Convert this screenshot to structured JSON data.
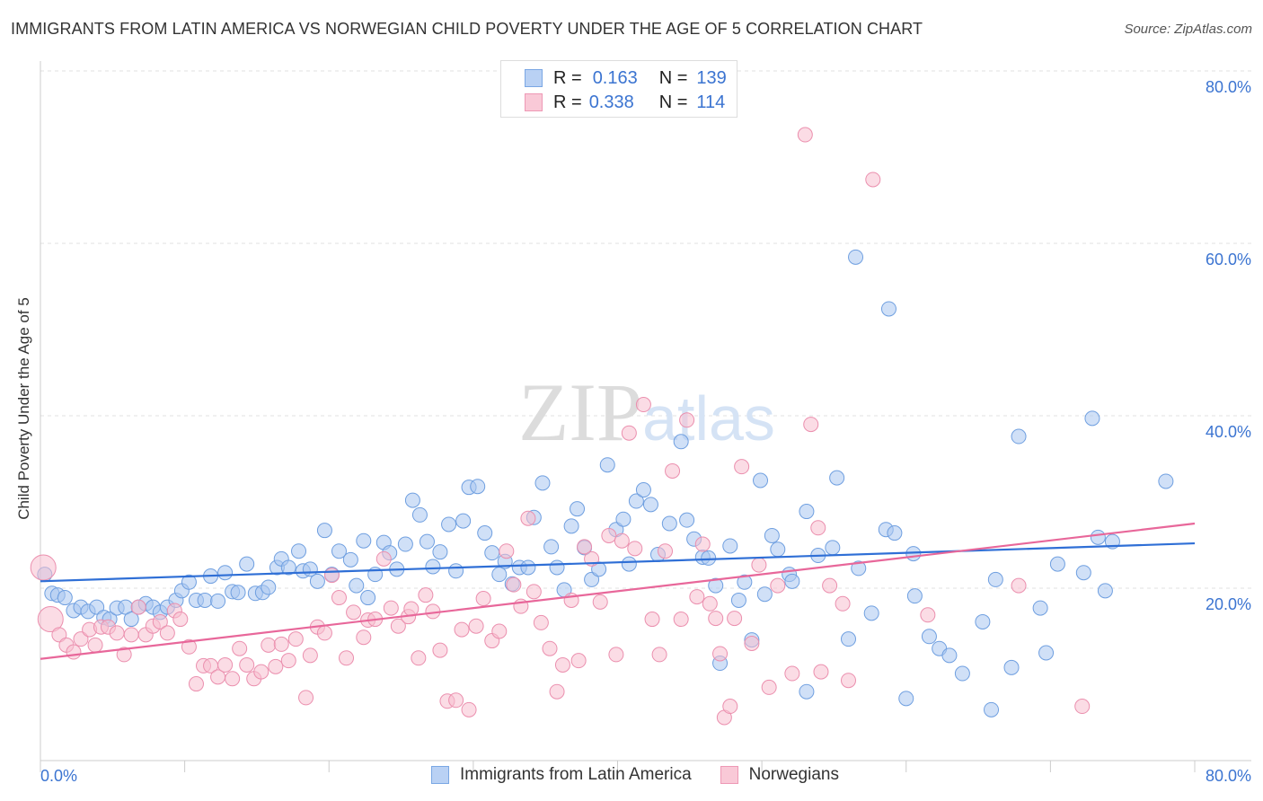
{
  "chart_data": {
    "type": "scatter",
    "title": "IMMIGRANTS FROM LATIN AMERICA VS NORWEGIAN CHILD POVERTY UNDER THE AGE OF 5 CORRELATION CHART",
    "source": "Source: ZipAtlas.com",
    "xlabel": "",
    "ylabel": "Child Poverty Under the Age of 5",
    "xlim": [
      0,
      80
    ],
    "ylim": [
      0,
      80
    ],
    "x_tick_labels": [
      "0.0%",
      "80.0%"
    ],
    "y_ticks": [
      20,
      40,
      60,
      80
    ],
    "y_tick_labels": [
      "20.0%",
      "40.0%",
      "60.0%",
      "80.0%"
    ],
    "grid": true,
    "watermark": "ZIPatlas",
    "legend": [
      {
        "r_label": "R =",
        "r": "0.163",
        "n_label": "N =",
        "n": "139"
      },
      {
        "r_label": "R =",
        "r": "0.338",
        "n_label": "N =",
        "n": "114"
      }
    ],
    "series": [
      {
        "name": "Immigrants from Latin America",
        "color": "#a9c6f0",
        "stroke": "#6f9fe0",
        "line_color": "#2f6fd6",
        "trend": [
          [
            0,
            20.8
          ],
          [
            80,
            25.2
          ]
        ],
        "points": [
          [
            0.3,
            21.6
          ],
          [
            0.8,
            19.4
          ],
          [
            1.2,
            19.2
          ],
          [
            1.7,
            18.9
          ],
          [
            2.3,
            17.4
          ],
          [
            2.8,
            17.8
          ],
          [
            3.3,
            17.3
          ],
          [
            3.9,
            17.8
          ],
          [
            4.4,
            16.6
          ],
          [
            4.8,
            16.4
          ],
          [
            5.3,
            17.7
          ],
          [
            5.9,
            17.8
          ],
          [
            6.3,
            16.4
          ],
          [
            6.8,
            17.8
          ],
          [
            7.3,
            18.2
          ],
          [
            7.8,
            17.8
          ],
          [
            8.3,
            17.2
          ],
          [
            8.8,
            17.8
          ],
          [
            9.4,
            18.6
          ],
          [
            9.8,
            19.7
          ],
          [
            10.3,
            20.7
          ],
          [
            10.8,
            18.6
          ],
          [
            11.4,
            18.6
          ],
          [
            11.8,
            21.4
          ],
          [
            12.3,
            18.5
          ],
          [
            12.8,
            21.8
          ],
          [
            13.3,
            19.6
          ],
          [
            13.7,
            19.5
          ],
          [
            14.3,
            22.8
          ],
          [
            14.9,
            19.4
          ],
          [
            15.4,
            19.5
          ],
          [
            15.8,
            20.1
          ],
          [
            16.4,
            22.4
          ],
          [
            16.7,
            23.4
          ],
          [
            17.2,
            22.4
          ],
          [
            17.9,
            24.3
          ],
          [
            18.2,
            22.0
          ],
          [
            18.7,
            22.2
          ],
          [
            19.2,
            20.8
          ],
          [
            19.7,
            26.7
          ],
          [
            20.2,
            21.6
          ],
          [
            20.7,
            24.3
          ],
          [
            21.5,
            23.3
          ],
          [
            21.9,
            20.3
          ],
          [
            22.4,
            25.5
          ],
          [
            22.7,
            18.9
          ],
          [
            23.2,
            21.6
          ],
          [
            23.8,
            25.3
          ],
          [
            24.2,
            24.1
          ],
          [
            24.7,
            22.2
          ],
          [
            25.3,
            25.1
          ],
          [
            25.8,
            30.2
          ],
          [
            26.3,
            28.5
          ],
          [
            26.8,
            25.4
          ],
          [
            27.2,
            22.5
          ],
          [
            27.7,
            24.2
          ],
          [
            28.3,
            27.4
          ],
          [
            28.8,
            22.0
          ],
          [
            29.3,
            27.8
          ],
          [
            29.7,
            31.7
          ],
          [
            30.3,
            31.8
          ],
          [
            30.8,
            26.4
          ],
          [
            31.3,
            24.1
          ],
          [
            31.8,
            21.6
          ],
          [
            32.2,
            23.1
          ],
          [
            32.7,
            20.5
          ],
          [
            33.2,
            22.4
          ],
          [
            33.8,
            22.4
          ],
          [
            34.2,
            28.2
          ],
          [
            34.8,
            32.2
          ],
          [
            35.4,
            24.8
          ],
          [
            35.8,
            22.4
          ],
          [
            36.3,
            19.8
          ],
          [
            36.8,
            27.2
          ],
          [
            37.2,
            29.2
          ],
          [
            37.7,
            24.7
          ],
          [
            38.2,
            21.0
          ],
          [
            38.7,
            22.2
          ],
          [
            39.3,
            34.3
          ],
          [
            39.9,
            26.8
          ],
          [
            40.4,
            28.0
          ],
          [
            40.8,
            22.8
          ],
          [
            41.3,
            30.1
          ],
          [
            41.8,
            31.4
          ],
          [
            42.3,
            29.7
          ],
          [
            42.8,
            23.9
          ],
          [
            43.6,
            27.5
          ],
          [
            44.4,
            37.0
          ],
          [
            44.8,
            27.9
          ],
          [
            45.3,
            25.7
          ],
          [
            45.9,
            23.6
          ],
          [
            46.3,
            23.5
          ],
          [
            46.8,
            20.3
          ],
          [
            47.1,
            11.3
          ],
          [
            47.8,
            24.9
          ],
          [
            48.4,
            18.6
          ],
          [
            48.8,
            20.7
          ],
          [
            49.3,
            14.0
          ],
          [
            49.9,
            32.5
          ],
          [
            50.2,
            19.3
          ],
          [
            50.7,
            26.1
          ],
          [
            51.1,
            24.5
          ],
          [
            51.9,
            21.6
          ],
          [
            52.1,
            20.8
          ],
          [
            53.1,
            28.9
          ],
          [
            53.1,
            8.0
          ],
          [
            53.9,
            23.8
          ],
          [
            54.9,
            24.7
          ],
          [
            55.2,
            32.8
          ],
          [
            56.0,
            14.1
          ],
          [
            56.5,
            58.4
          ],
          [
            56.7,
            22.3
          ],
          [
            57.6,
            17.1
          ],
          [
            58.6,
            26.8
          ],
          [
            58.8,
            52.4
          ],
          [
            59.2,
            26.4
          ],
          [
            60.0,
            7.2
          ],
          [
            60.5,
            24.0
          ],
          [
            60.6,
            19.1
          ],
          [
            61.6,
            14.4
          ],
          [
            62.3,
            13.0
          ],
          [
            63.0,
            12.2
          ],
          [
            63.9,
            10.1
          ],
          [
            65.3,
            16.1
          ],
          [
            65.9,
            5.9
          ],
          [
            66.2,
            21.0
          ],
          [
            67.3,
            10.8
          ],
          [
            67.8,
            37.6
          ],
          [
            69.3,
            17.7
          ],
          [
            69.7,
            12.5
          ],
          [
            70.5,
            22.8
          ],
          [
            72.3,
            21.8
          ],
          [
            72.9,
            39.7
          ],
          [
            73.3,
            25.9
          ],
          [
            73.8,
            19.7
          ],
          [
            74.3,
            25.4
          ],
          [
            78.0,
            32.4
          ]
        ]
      },
      {
        "name": "Norwegians",
        "color": "#f7bfd0",
        "stroke": "#eb8fae",
        "line_color": "#e8679a",
        "trend": [
          [
            0,
            11.8
          ],
          [
            80,
            27.5
          ]
        ],
        "points": [
          [
            0.2,
            22.4
          ],
          [
            0.7,
            16.4
          ],
          [
            1.3,
            14.6
          ],
          [
            1.8,
            13.4
          ],
          [
            2.3,
            12.6
          ],
          [
            2.8,
            14.1
          ],
          [
            3.4,
            15.2
          ],
          [
            3.8,
            13.4
          ],
          [
            4.2,
            15.5
          ],
          [
            4.7,
            15.5
          ],
          [
            5.3,
            14.8
          ],
          [
            5.8,
            12.3
          ],
          [
            6.3,
            14.6
          ],
          [
            6.8,
            17.8
          ],
          [
            7.3,
            14.6
          ],
          [
            7.8,
            15.6
          ],
          [
            8.3,
            16.1
          ],
          [
            8.8,
            14.8
          ],
          [
            9.3,
            17.4
          ],
          [
            9.7,
            16.4
          ],
          [
            10.3,
            13.2
          ],
          [
            10.8,
            8.9
          ],
          [
            11.3,
            11.0
          ],
          [
            11.8,
            11.0
          ],
          [
            12.3,
            9.7
          ],
          [
            12.8,
            11.1
          ],
          [
            13.3,
            9.5
          ],
          [
            13.8,
            13.0
          ],
          [
            14.3,
            11.1
          ],
          [
            14.8,
            9.5
          ],
          [
            15.3,
            10.3
          ],
          [
            15.8,
            13.4
          ],
          [
            16.3,
            10.9
          ],
          [
            16.7,
            13.5
          ],
          [
            17.2,
            11.6
          ],
          [
            17.7,
            14.1
          ],
          [
            18.4,
            7.3
          ],
          [
            18.7,
            12.2
          ],
          [
            19.2,
            15.5
          ],
          [
            19.7,
            14.8
          ],
          [
            20.2,
            21.5
          ],
          [
            20.7,
            18.9
          ],
          [
            21.2,
            11.9
          ],
          [
            21.7,
            17.2
          ],
          [
            22.4,
            14.3
          ],
          [
            22.7,
            16.3
          ],
          [
            23.2,
            16.4
          ],
          [
            23.8,
            23.4
          ],
          [
            24.3,
            17.7
          ],
          [
            24.8,
            15.6
          ],
          [
            25.5,
            16.7
          ],
          [
            25.7,
            17.6
          ],
          [
            26.2,
            11.9
          ],
          [
            26.7,
            19.2
          ],
          [
            27.2,
            17.3
          ],
          [
            27.7,
            12.8
          ],
          [
            28.2,
            6.9
          ],
          [
            28.8,
            7.0
          ],
          [
            29.2,
            15.2
          ],
          [
            29.7,
            5.9
          ],
          [
            30.2,
            15.6
          ],
          [
            30.7,
            18.8
          ],
          [
            31.3,
            13.9
          ],
          [
            31.8,
            15.0
          ],
          [
            32.3,
            24.3
          ],
          [
            32.8,
            20.4
          ],
          [
            33.3,
            17.9
          ],
          [
            33.8,
            28.1
          ],
          [
            34.2,
            19.6
          ],
          [
            34.7,
            16.0
          ],
          [
            35.3,
            13.0
          ],
          [
            35.8,
            8.0
          ],
          [
            36.2,
            11.1
          ],
          [
            36.8,
            18.6
          ],
          [
            37.3,
            11.6
          ],
          [
            37.7,
            24.8
          ],
          [
            38.2,
            23.4
          ],
          [
            38.8,
            18.4
          ],
          [
            39.4,
            26.1
          ],
          [
            39.9,
            12.3
          ],
          [
            40.3,
            25.5
          ],
          [
            40.8,
            38.0
          ],
          [
            41.2,
            24.6
          ],
          [
            41.8,
            41.3
          ],
          [
            42.4,
            16.4
          ],
          [
            42.9,
            12.3
          ],
          [
            43.3,
            24.3
          ],
          [
            43.8,
            33.6
          ],
          [
            44.4,
            16.4
          ],
          [
            44.8,
            39.5
          ],
          [
            45.5,
            19.0
          ],
          [
            45.9,
            25.1
          ],
          [
            46.4,
            18.2
          ],
          [
            46.8,
            16.5
          ],
          [
            47.1,
            12.4
          ],
          [
            47.4,
            5.0
          ],
          [
            47.8,
            6.3
          ],
          [
            48.1,
            16.5
          ],
          [
            48.6,
            34.1
          ],
          [
            49.3,
            13.6
          ],
          [
            49.8,
            22.7
          ],
          [
            50.5,
            8.5
          ],
          [
            51.1,
            20.3
          ],
          [
            52.1,
            10.1
          ],
          [
            53.0,
            72.6
          ],
          [
            53.4,
            39.0
          ],
          [
            53.9,
            27.0
          ],
          [
            54.1,
            10.3
          ],
          [
            54.7,
            20.3
          ],
          [
            55.6,
            18.2
          ],
          [
            56.0,
            9.3
          ],
          [
            57.7,
            67.4
          ],
          [
            61.5,
            16.9
          ],
          [
            67.8,
            20.3
          ],
          [
            72.2,
            6.3
          ]
        ]
      }
    ]
  }
}
